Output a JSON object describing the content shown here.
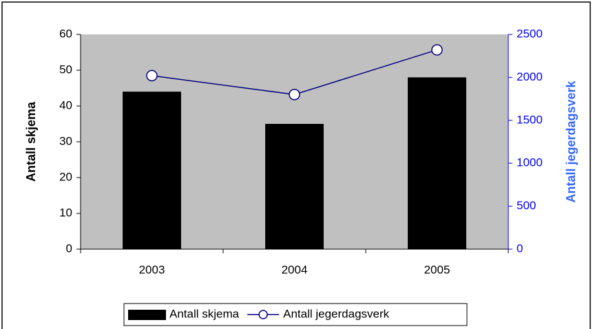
{
  "chart_data": {
    "type": "bar",
    "categories": [
      "2003",
      "2004",
      "2005"
    ],
    "y_label": "Antall skjema",
    "y2_label": "Antall jegerdagsverk",
    "series": [
      {
        "name": "Antall skjema",
        "type": "bar",
        "color": "#000000",
        "values": [
          44,
          35,
          48
        ]
      },
      {
        "name": "Antall jegerdagsverk",
        "type": "line",
        "axis": "y2",
        "color": "#000080",
        "values": [
          2020,
          1800,
          2320
        ]
      }
    ],
    "ylim": [
      0,
      60
    ],
    "yticks": [
      0,
      10,
      20,
      30,
      40,
      50,
      60
    ],
    "y2lim": [
      0,
      2500
    ],
    "y2ticks": [
      0,
      500,
      1000,
      1500,
      2000,
      2500
    ],
    "y2_color": "#0000ff",
    "y2_label_color": "#3366ff",
    "plot_background": "#c0c0c0",
    "legend": "bottom"
  }
}
